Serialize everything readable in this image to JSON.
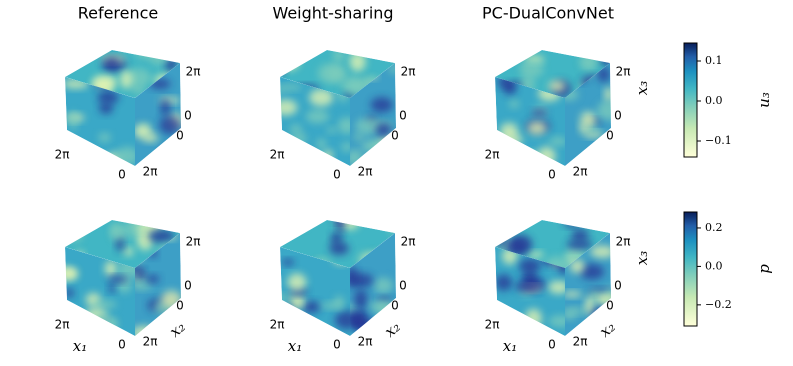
{
  "column_titles": [
    "Reference",
    "Weight-sharing",
    "PC-DualConvNet"
  ],
  "cube_ticks": {
    "zero": "0",
    "two_pi": "2π"
  },
  "axis_labels": {
    "x1": "x₁",
    "x2": "x₂",
    "x3": "x₃"
  },
  "colorbars": [
    {
      "label": "u₃",
      "lim": [
        -0.14,
        0.145
      ],
      "ticks": [
        0.1,
        {
          "value": 0,
          "label": "0.0"
        },
        {
          "value": -0.1,
          "label": "−0.1"
        }
      ]
    },
    {
      "label": "p",
      "lim": [
        -0.31,
        0.283
      ],
      "ticks": [
        0.2,
        {
          "value": 0,
          "label": "0.0"
        },
        {
          "value": -0.2,
          "label": "−0.2"
        }
      ]
    }
  ]
}
